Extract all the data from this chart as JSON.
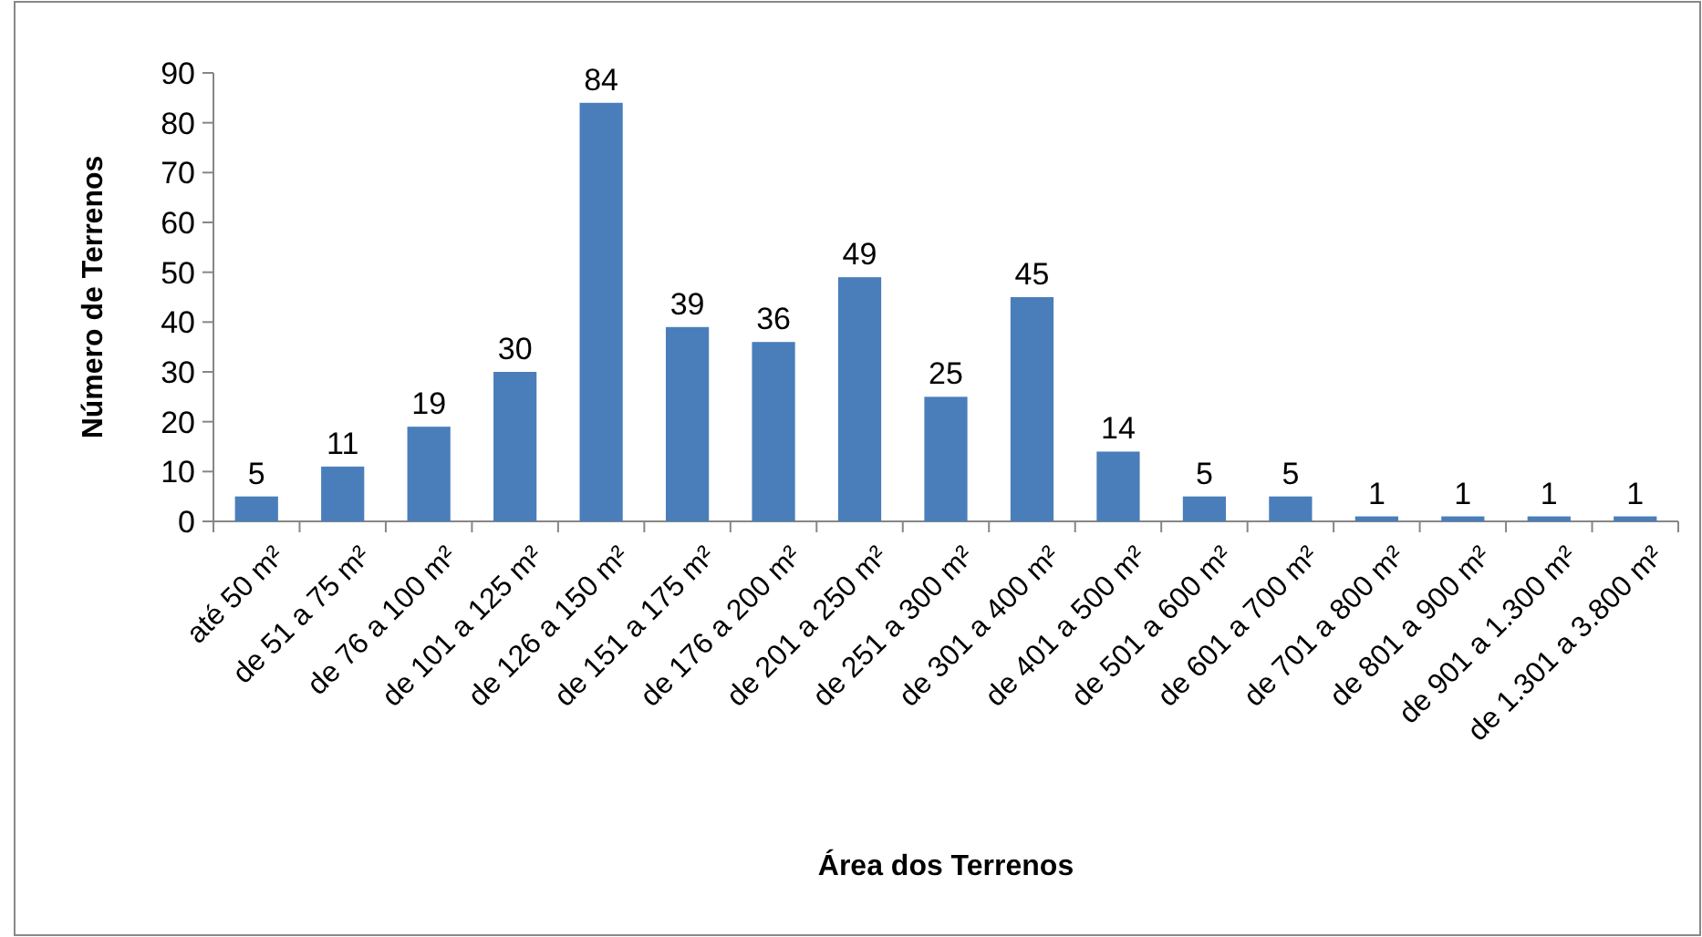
{
  "chart_data": {
    "type": "bar",
    "xlabel": "Área dos Terrenos",
    "ylabel": "Número de Terrenos",
    "categories": [
      "até 50 m²",
      "de 51 a 75 m²",
      "de 76 a 100 m²",
      "de 101 a 125 m²",
      "de 126 a 150 m²",
      "de 151 a 175 m²",
      "de 176 a 200 m²",
      "de 201 a 250 m²",
      "de 251 a 300 m²",
      "de 301 a 400 m²",
      "de 401 a 500 m²",
      "de 501 a 600 m²",
      "de 601 a 700 m²",
      "de 701 a 800 m²",
      "de 801 a 900 m²",
      "de 901 a 1.300 m²",
      "de 1.301 a 3.800 m²"
    ],
    "values": [
      5,
      11,
      19,
      30,
      84,
      39,
      36,
      49,
      25,
      45,
      14,
      5,
      5,
      1,
      1,
      1,
      1
    ],
    "color": "#4a7ebb",
    "ylim": [
      0,
      90
    ],
    "yticks": [
      0,
      10,
      20,
      30,
      40,
      50,
      60,
      70,
      80,
      90
    ],
    "grid": false,
    "data_labels": true
  }
}
